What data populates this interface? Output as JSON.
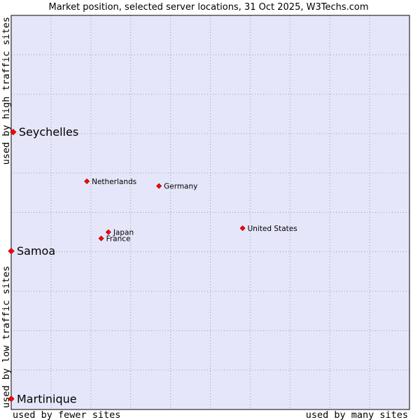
{
  "chart_data": {
    "type": "scatter",
    "title": "Market position, selected server locations, 31 Oct 2025, W3Techs.com",
    "xlabel_left": "used by fewer sites",
    "xlabel_right": "used by many sites",
    "ylabel_bottom": "used by low traffic sites",
    "ylabel_top": "used by high traffic sites",
    "xlim": [
      0,
      100
    ],
    "ylim": [
      0,
      100
    ],
    "grid": true,
    "points": [
      {
        "label": "Seychelles",
        "x": 0.5,
        "y": 70.4,
        "size": "large"
      },
      {
        "label": "Netherlands",
        "x": 19.0,
        "y": 57.9,
        "size": "small"
      },
      {
        "label": "Germany",
        "x": 37.1,
        "y": 56.7,
        "size": "small"
      },
      {
        "label": "United States",
        "x": 58.1,
        "y": 46.0,
        "size": "small"
      },
      {
        "label": "Japan",
        "x": 24.4,
        "y": 45.0,
        "size": "small"
      },
      {
        "label": "France",
        "x": 22.6,
        "y": 43.4,
        "size": "small"
      },
      {
        "label": "Samoa",
        "x": 0.0,
        "y": 40.2,
        "size": "large"
      },
      {
        "label": "Martinique",
        "x": 0.0,
        "y": 2.7,
        "size": "large"
      }
    ]
  },
  "colors": {
    "plot_background": "#e6e6fa",
    "grid": "#9a9aaa",
    "point": "#ff0000",
    "text": "#000000"
  }
}
